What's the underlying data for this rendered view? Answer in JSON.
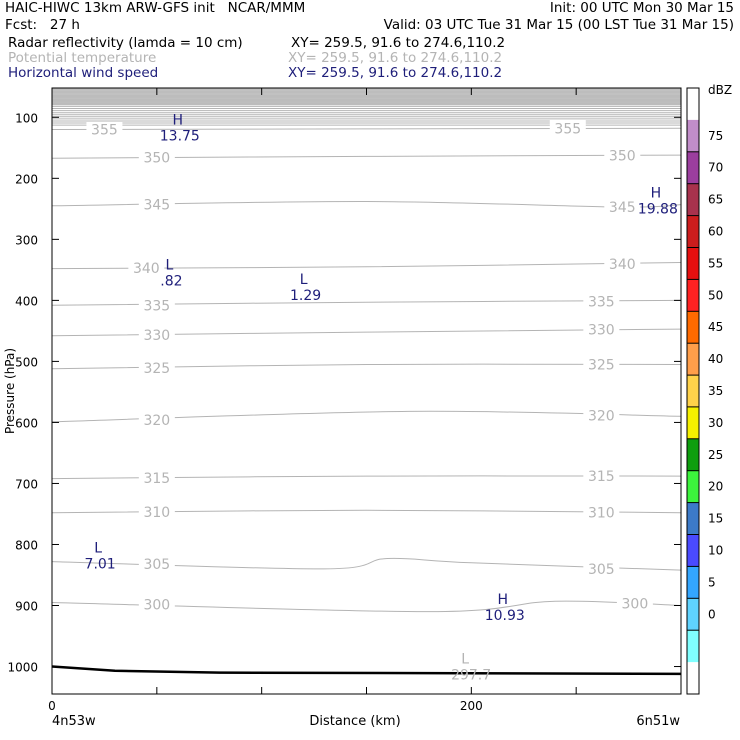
{
  "header": {
    "line1_left": "HAIC-HIWC 13km ARW-GFS init   NCAR/MMM",
    "line1_right": "Init: 00 UTC Mon 30 Mar 15",
    "line2_left": "Fcst:   27 h",
    "line2_right": "Valid: 03 UTC Tue 31 Mar 15 (00 LST Tue 31 Mar 15)",
    "fields": [
      {
        "name": "Radar reflectivity (lamda = 10 cm)",
        "xy": "XY= 259.5, 91.6 to 274.6,110.2",
        "color": "#000000"
      },
      {
        "name": "Potential temperature",
        "xy": "XY= 259.5, 91.6 to 274.6,110.2",
        "color": "#b4b4b4"
      },
      {
        "name": "Horizontal wind speed",
        "xy": "XY= 259.5, 91.6 to 274.6,110.2",
        "color": "#1e1e7a"
      }
    ]
  },
  "colors": {
    "contour": "#b4b4b4",
    "wind_label": "#1e1e7a",
    "terrain": "#000000"
  },
  "chart_data": {
    "type": "cross-section",
    "xlabel": "Distance (km)",
    "ylabel": "Pressure (hPa)",
    "xlim": [
      0,
      300
    ],
    "ylim": [
      1045,
      52
    ],
    "x_ticks": [
      0,
      50,
      100,
      150,
      200,
      250,
      300
    ],
    "x_tick_labels": [
      {
        "x": 0,
        "label": "0"
      },
      {
        "x": 200,
        "label": "200"
      }
    ],
    "y_ticks": [
      100,
      200,
      300,
      400,
      500,
      600,
      700,
      800,
      900,
      1000
    ],
    "y_tick_labels": [
      "100",
      "200",
      "300",
      "400",
      "500",
      "600",
      "700",
      "800",
      "900",
      "1000"
    ],
    "endpoint_labels": {
      "left": "4n53w",
      "right": "6n51w"
    },
    "potential_temperature": [
      {
        "value": 355,
        "points": [
          [
            0,
            120
          ],
          [
            150,
            119
          ],
          [
            300,
            118
          ]
        ],
        "labels": [
          {
            "x": 25,
            "p": 120,
            "text": "355"
          },
          {
            "x": 246,
            "p": 118,
            "text": "355"
          }
        ]
      },
      {
        "value": 350,
        "points": [
          [
            0,
            167
          ],
          [
            150,
            164
          ],
          [
            300,
            162
          ]
        ],
        "labels": [
          {
            "x": 50,
            "p": 166,
            "text": "350"
          },
          {
            "x": 272,
            "p": 163,
            "text": "350"
          }
        ]
      },
      {
        "value": 345,
        "points": [
          [
            0,
            245
          ],
          [
            150,
            238
          ],
          [
            270,
            247
          ],
          [
            300,
            243
          ]
        ],
        "labels": [
          {
            "x": 50,
            "p": 243,
            "text": "345"
          },
          {
            "x": 272,
            "p": 247,
            "text": "345"
          }
        ]
      },
      {
        "value": 340,
        "points": [
          [
            0,
            348
          ],
          [
            150,
            345
          ],
          [
            300,
            338
          ]
        ],
        "labels": [
          {
            "x": 45,
            "p": 347,
            "text": "340"
          },
          {
            "x": 272,
            "p": 340,
            "text": "340"
          }
        ]
      },
      {
        "value": 335,
        "points": [
          [
            0,
            408
          ],
          [
            150,
            403
          ],
          [
            300,
            400
          ]
        ],
        "labels": [
          {
            "x": 50,
            "p": 408,
            "text": "335"
          },
          {
            "x": 262,
            "p": 402,
            "text": "335"
          }
        ]
      },
      {
        "value": 330,
        "points": [
          [
            0,
            458
          ],
          [
            150,
            452
          ],
          [
            300,
            447
          ]
        ],
        "labels": [
          {
            "x": 50,
            "p": 457,
            "text": "330"
          },
          {
            "x": 262,
            "p": 448,
            "text": "330"
          }
        ]
      },
      {
        "value": 325,
        "points": [
          [
            0,
            512
          ],
          [
            150,
            505
          ],
          [
            300,
            505
          ]
        ],
        "labels": [
          {
            "x": 50,
            "p": 511,
            "text": "325"
          },
          {
            "x": 262,
            "p": 505,
            "text": "325"
          }
        ]
      },
      {
        "value": 320,
        "points": [
          [
            0,
            599
          ],
          [
            170,
            582
          ],
          [
            300,
            590
          ]
        ],
        "labels": [
          {
            "x": 50,
            "p": 596,
            "text": "320"
          },
          {
            "x": 262,
            "p": 589,
            "text": "320"
          }
        ]
      },
      {
        "value": 315,
        "points": [
          [
            0,
            692
          ],
          [
            150,
            688
          ],
          [
            300,
            688
          ]
        ],
        "labels": [
          {
            "x": 50,
            "p": 691,
            "text": "315"
          },
          {
            "x": 262,
            "p": 688,
            "text": "315"
          }
        ]
      },
      {
        "value": 310,
        "points": [
          [
            0,
            748
          ],
          [
            150,
            744
          ],
          [
            300,
            748
          ]
        ],
        "labels": [
          {
            "x": 50,
            "p": 747,
            "text": "310"
          },
          {
            "x": 262,
            "p": 748,
            "text": "310"
          }
        ]
      },
      {
        "value": 305,
        "points": [
          [
            0,
            828
          ],
          [
            130,
            840
          ],
          [
            160,
            823
          ],
          [
            200,
            830
          ],
          [
            300,
            842
          ]
        ],
        "labels": [
          {
            "x": 50,
            "p": 832,
            "text": "305"
          },
          {
            "x": 262,
            "p": 840,
            "text": "305"
          }
        ]
      },
      {
        "value": 300,
        "points": [
          [
            0,
            895
          ],
          [
            180,
            910
          ],
          [
            240,
            893
          ],
          [
            300,
            900
          ]
        ],
        "labels": [
          {
            "x": 50,
            "p": 898,
            "text": "300"
          },
          {
            "x": 278,
            "p": 897,
            "text": "300"
          }
        ]
      }
    ],
    "pt_extrema": [
      {
        "type": "L",
        "value": "297.7",
        "x": 198,
        "p": 998
      }
    ],
    "wind_extrema": [
      {
        "type": "H",
        "value": "13.75",
        "x": 60,
        "p": 104
      },
      {
        "type": "H",
        "value": "19.88",
        "x": 288,
        "p": 223
      },
      {
        "type": "L",
        "value": ".82",
        "x": 56,
        "p": 341
      },
      {
        "type": "L",
        "value": "1.29",
        "x": 120,
        "p": 365
      },
      {
        "type": "L",
        "value": "7.01",
        "x": 22,
        "p": 805
      },
      {
        "type": "H",
        "value": "10.93",
        "x": 215,
        "p": 889
      }
    ],
    "terrain": [
      [
        0,
        1000
      ],
      [
        30,
        1007
      ],
      [
        80,
        1010
      ],
      [
        300,
        1012
      ]
    ],
    "colorbar": {
      "label": "dBZ",
      "levels": [
        "75",
        "70",
        "65",
        "60",
        "55",
        "50",
        "45",
        "40",
        "35",
        "30",
        "25",
        "20",
        "15",
        "10",
        "5",
        "0"
      ],
      "colors": [
        "#ffffff",
        "#c18dc9",
        "#9b3e9e",
        "#a8324d",
        "#cc1d1d",
        "#e61010",
        "#ff2222",
        "#ff6a00",
        "#ff9e4a",
        "#ffd24a",
        "#f5f000",
        "#0f9e0f",
        "#3cf33c",
        "#3c7ac8",
        "#4a4aff",
        "#33a6ff",
        "#5fd3ff",
        "#80ffff",
        "#ffffff"
      ]
    }
  }
}
